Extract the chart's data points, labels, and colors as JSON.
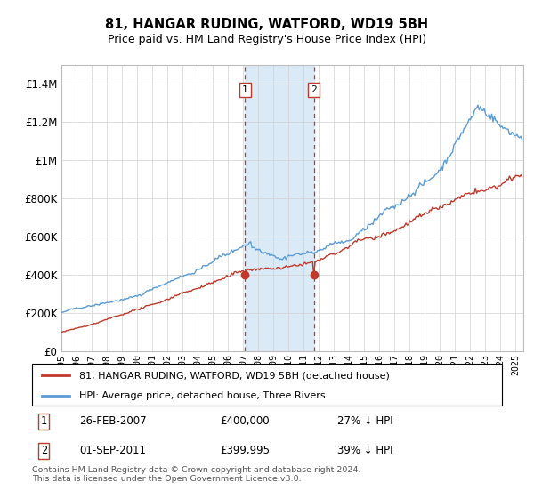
{
  "title": "81, HANGAR RUDING, WATFORD, WD19 5BH",
  "subtitle": "Price paid vs. HM Land Registry's House Price Index (HPI)",
  "legend_line1": "81, HANGAR RUDING, WATFORD, WD19 5BH (detached house)",
  "legend_line2": "HPI: Average price, detached house, Three Rivers",
  "transaction1_date": "26-FEB-2007",
  "transaction1_price": "£400,000",
  "transaction1_hpi": "27% ↓ HPI",
  "transaction2_date": "01-SEP-2011",
  "transaction2_price": "£399,995",
  "transaction2_hpi": "39% ↓ HPI",
  "footnote": "Contains HM Land Registry data © Crown copyright and database right 2024.\nThis data is licensed under the Open Government Licence v3.0.",
  "hpi_color": "#5b9bd5",
  "price_color": "#c0392b",
  "shading_color": "#daeaf7",
  "marker1_x": 2007.12,
  "marker2_x": 2011.67,
  "ylim_max": 1500000,
  "ylim_min": 0,
  "xstart": 1995,
  "xend": 2025.5
}
